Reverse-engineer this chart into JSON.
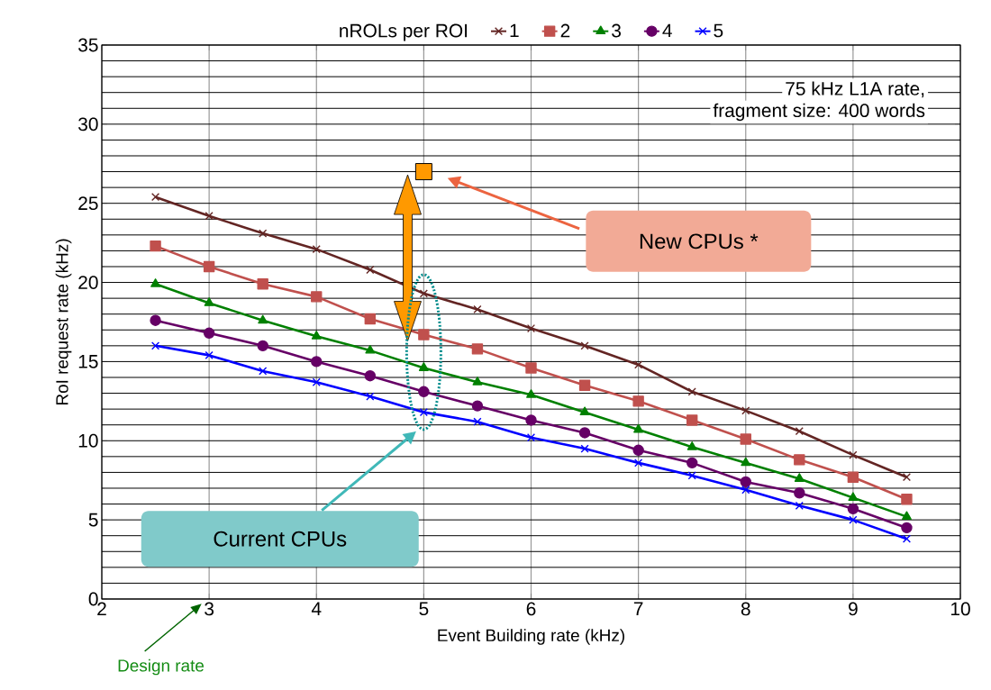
{
  "chart_data": {
    "type": "line",
    "xlabel": "Event Building rate (kHz)",
    "ylabel": "RoI request rate (kHz)",
    "legend_title": "nROLs per ROI",
    "x": [
      2.5,
      3,
      3.5,
      4,
      4.5,
      5,
      5.5,
      6,
      6.5,
      7,
      7.5,
      8,
      8.5,
      9,
      9.5
    ],
    "series": [
      {
        "name": "1",
        "color": "#632523",
        "marker": "cross",
        "values": [
          25.4,
          24.2,
          23.1,
          22.1,
          20.8,
          19.3,
          18.3,
          17.1,
          16.0,
          14.8,
          13.1,
          11.9,
          10.6,
          9.1,
          7.7
        ]
      },
      {
        "name": "2",
        "color": "#c0504d",
        "marker": "square",
        "values": [
          22.3,
          21.0,
          19.9,
          19.1,
          17.7,
          16.7,
          15.8,
          14.6,
          13.5,
          12.5,
          11.3,
          10.1,
          8.8,
          7.7,
          6.3
        ]
      },
      {
        "name": "3",
        "color": "#008000",
        "marker": "triangle",
        "values": [
          19.9,
          18.7,
          17.6,
          16.6,
          15.7,
          14.6,
          13.7,
          12.9,
          11.8,
          10.7,
          9.6,
          8.6,
          7.6,
          6.4,
          5.2
        ]
      },
      {
        "name": "4",
        "color": "#660066",
        "marker": "circle",
        "values": [
          17.6,
          16.8,
          16.0,
          15.0,
          14.1,
          13.1,
          12.2,
          11.3,
          10.5,
          9.4,
          8.6,
          7.4,
          6.7,
          5.7,
          4.5
        ]
      },
      {
        "name": "5",
        "color": "#0000ff",
        "marker": "cross",
        "values": [
          16.0,
          15.4,
          14.4,
          13.7,
          12.8,
          11.8,
          11.2,
          10.2,
          9.5,
          8.6,
          7.8,
          6.9,
          5.9,
          5.0,
          3.8
        ]
      },
      {
        "type": "scatter",
        "color": "#ff9900",
        "marker": "square",
        "x": [
          5
        ],
        "values": [
          27.0
        ]
      }
    ],
    "xlim": [
      2,
      10
    ],
    "xticks": [
      2,
      3,
      4,
      5,
      6,
      7,
      8,
      9,
      10
    ],
    "ylim": [
      0,
      35
    ],
    "yticks": [
      0,
      5,
      10,
      15,
      20,
      25,
      30,
      35
    ],
    "grid": true,
    "legend": "top",
    "annotations": [
      "75 kHz L1A rate,",
      "fragment size: 400 words",
      "New CPUs *",
      "Current CPUs",
      "Design rate"
    ]
  }
}
